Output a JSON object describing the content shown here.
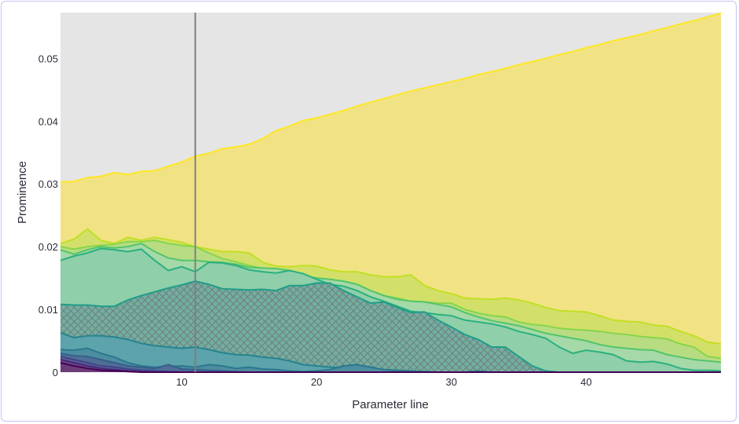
{
  "chart_data": {
    "type": "area",
    "xlabel": "Parameter line",
    "ylabel": "Prominence",
    "xlim": [
      1,
      50
    ],
    "ylim": [
      0,
      0.0573
    ],
    "x_ticks": [
      10,
      20,
      30,
      40
    ],
    "y_ticks": [
      {
        "value": 0,
        "label": "0"
      },
      {
        "value": 0.01,
        "label": "0.01"
      },
      {
        "value": 0.02,
        "label": "0.02"
      },
      {
        "value": 0.03,
        "label": "0.03"
      },
      {
        "value": 0.04,
        "label": "0.04"
      },
      {
        "value": 0.05,
        "label": "0.05"
      }
    ],
    "grid": false,
    "legend": "none",
    "plot_background": "#e5e5e5",
    "vertical_marker": {
      "x": 11,
      "color": "#7f7f7f"
    },
    "x": [
      1,
      2,
      3,
      4,
      5,
      6,
      7,
      8,
      9,
      10,
      11,
      12,
      13,
      14,
      15,
      16,
      17,
      18,
      19,
      20,
      21,
      22,
      23,
      24,
      25,
      26,
      27,
      28,
      29,
      30,
      31,
      32,
      33,
      34,
      35,
      36,
      37,
      38,
      39,
      40,
      41,
      42,
      43,
      44,
      45,
      46,
      47,
      48,
      49,
      50
    ],
    "series": [
      {
        "color": "#fde725",
        "fill": "#f1e384",
        "values": [
          0.0303,
          0.0304,
          0.031,
          0.0312,
          0.0318,
          0.0315,
          0.032,
          0.0321,
          0.0328,
          0.0335,
          0.0344,
          0.0349,
          0.0356,
          0.0359,
          0.0363,
          0.0372,
          0.0385,
          0.0392,
          0.0401,
          0.0405,
          0.0411,
          0.0417,
          0.0424,
          0.043,
          0.0436,
          0.0442,
          0.0448,
          0.0453,
          0.0458,
          0.0463,
          0.0468,
          0.0474,
          0.0479,
          0.0484,
          0.049,
          0.0495,
          0.05,
          0.0506,
          0.0511,
          0.0517,
          0.0522,
          0.0528,
          0.0533,
          0.0538,
          0.0544,
          0.0549,
          0.0555,
          0.056,
          0.0566,
          0.0572
        ]
      },
      {
        "color": "#c2df23",
        "fill": "#d2e06a",
        "values": [
          0.0205,
          0.0212,
          0.0228,
          0.021,
          0.0205,
          0.0215,
          0.021,
          0.0215,
          0.0211,
          0.0207,
          0.02,
          0.0196,
          0.0192,
          0.0192,
          0.019,
          0.0175,
          0.0169,
          0.0168,
          0.017,
          0.0169,
          0.0163,
          0.016,
          0.016,
          0.0155,
          0.0152,
          0.0152,
          0.0155,
          0.0138,
          0.013,
          0.0125,
          0.0118,
          0.0117,
          0.0116,
          0.0118,
          0.0115,
          0.011,
          0.0103,
          0.0098,
          0.0097,
          0.0096,
          0.009,
          0.0083,
          0.0081,
          0.008,
          0.0075,
          0.0073,
          0.0065,
          0.0058,
          0.0048,
          0.0045
        ]
      },
      {
        "color": "#86d549",
        "fill": "#b8dc82",
        "values": [
          0.02,
          0.0196,
          0.02,
          0.0202,
          0.0204,
          0.0208,
          0.0208,
          0.021,
          0.0205,
          0.0202,
          0.02,
          0.019,
          0.0181,
          0.0176,
          0.017,
          0.0165,
          0.0162,
          0.016,
          0.0152,
          0.0148,
          0.0144,
          0.014,
          0.0136,
          0.013,
          0.0122,
          0.0118,
          0.0113,
          0.0112,
          0.011,
          0.011,
          0.01,
          0.0094,
          0.009,
          0.0088,
          0.008,
          0.0076,
          0.0074,
          0.007,
          0.0068,
          0.0067,
          0.0065,
          0.0062,
          0.006,
          0.0057,
          0.0055,
          0.0053,
          0.0045,
          0.004,
          0.0025,
          0.0022
        ]
      },
      {
        "color": "#52c569",
        "fill": "#a5d9a8",
        "values": [
          0.0195,
          0.0188,
          0.0195,
          0.02,
          0.0198,
          0.02,
          0.0205,
          0.0192,
          0.0182,
          0.0178,
          0.0178,
          0.0176,
          0.0175,
          0.0172,
          0.0167,
          0.0166,
          0.0165,
          0.0162,
          0.0154,
          0.015,
          0.0148,
          0.0145,
          0.014,
          0.013,
          0.0122,
          0.0116,
          0.0113,
          0.0112,
          0.0108,
          0.0104,
          0.0095,
          0.0088,
          0.0082,
          0.0078,
          0.0074,
          0.0068,
          0.0062,
          0.0058,
          0.0054,
          0.005,
          0.0044,
          0.004,
          0.0038,
          0.0036,
          0.0035,
          0.0028,
          0.0024,
          0.002,
          0.0018,
          0.0016
        ]
      },
      {
        "color": "#2ab07f",
        "fill": "#8fcfa9",
        "values": [
          0.0178,
          0.0185,
          0.019,
          0.0197,
          0.0195,
          0.0192,
          0.0196,
          0.0178,
          0.0162,
          0.0168,
          0.016,
          0.0175,
          0.0174,
          0.017,
          0.0163,
          0.016,
          0.0158,
          0.0162,
          0.0157,
          0.0148,
          0.014,
          0.0137,
          0.013,
          0.012,
          0.0113,
          0.0105,
          0.0097,
          0.0095,
          0.0092,
          0.009,
          0.0083,
          0.008,
          0.0077,
          0.0072,
          0.0065,
          0.006,
          0.0054,
          0.004,
          0.003,
          0.0035,
          0.0032,
          0.0028,
          0.0018,
          0.0016,
          0.0017,
          0.0013,
          0.0006,
          0.0003,
          0.0003,
          0.0002
        ]
      },
      {
        "color": "#1f9e89",
        "fill": "#72aea2",
        "hatch": true,
        "values": [
          0.0108,
          0.0107,
          0.0107,
          0.0105,
          0.0105,
          0.0115,
          0.0122,
          0.0128,
          0.0134,
          0.0139,
          0.0145,
          0.014,
          0.0133,
          0.0132,
          0.0131,
          0.0132,
          0.013,
          0.0138,
          0.0138,
          0.0142,
          0.0142,
          0.013,
          0.012,
          0.011,
          0.0112,
          0.0103,
          0.0095,
          0.0096,
          0.0083,
          0.0072,
          0.006,
          0.0052,
          0.004,
          0.004,
          0.0025,
          0.001,
          0.0002,
          0.0,
          0.0,
          0.0,
          0.0,
          0.0,
          0.0,
          0.0,
          0.0,
          0.0,
          0.0,
          0.0,
          0.0,
          0.0
        ]
      },
      {
        "color": "#25848e",
        "fill": "#5da3ab",
        "values": [
          0.0063,
          0.0055,
          0.0058,
          0.0058,
          0.0056,
          0.0052,
          0.0046,
          0.0042,
          0.004,
          0.0038,
          0.004,
          0.0036,
          0.0031,
          0.0028,
          0.0027,
          0.0024,
          0.0022,
          0.0018,
          0.0012,
          0.001,
          0.0008,
          0.0007,
          0.0006,
          0.0005,
          0.0004,
          0.0003,
          0.0002,
          0.0001,
          0.0,
          0.0,
          0.0,
          0.0,
          0.0,
          0.0,
          0.0,
          0.0,
          0.0,
          0.0,
          0.0,
          0.0,
          0.0,
          0.0,
          0.0,
          0.0,
          0.0,
          0.0,
          0.0,
          0.0,
          0.0,
          0.0
        ]
      },
      {
        "color": "#2a788e",
        "fill": "#4d8da0",
        "values": [
          0.0036,
          0.0035,
          0.0038,
          0.003,
          0.0024,
          0.0015,
          0.001,
          0.0008,
          0.0009,
          0.001,
          0.0008,
          0.0012,
          0.001,
          0.0006,
          0.0008,
          0.0005,
          0.0004,
          0.0002,
          0.0001,
          0.0002,
          0.0004,
          0.001,
          0.0012,
          0.0008,
          0.0004,
          0.0002,
          0.0001,
          0.0,
          0.0,
          0.0,
          0.0,
          0.0002,
          0.0,
          0.0,
          0.0,
          0.0,
          0.0,
          0.0,
          0.0,
          0.0,
          0.0,
          0.0,
          0.0,
          0.0,
          0.0,
          0.0,
          0.0,
          0.0,
          0.0,
          0.0
        ]
      },
      {
        "color": "#355f8d",
        "fill": "#4f6e96",
        "values": [
          0.003,
          0.0026,
          0.0025,
          0.002,
          0.0015,
          0.001,
          0.0008,
          0.0006,
          0.0012,
          0.0005,
          0.0004,
          0.0003,
          0.0002,
          0.0001,
          0.0,
          0.0,
          0.0,
          0.0,
          0.0,
          0.0,
          0.0,
          0.0,
          0.0,
          0.0,
          0.0,
          0.0,
          0.0,
          0.0,
          0.0,
          0.0,
          0.0,
          0.0,
          0.0,
          0.0,
          0.0,
          0.0,
          0.0,
          0.0,
          0.0,
          0.0,
          0.0,
          0.0,
          0.0,
          0.0,
          0.0,
          0.0,
          0.0,
          0.0,
          0.0,
          0.0
        ]
      },
      {
        "color": "#414487",
        "fill": "#5a5d96",
        "values": [
          0.0025,
          0.002,
          0.0015,
          0.001,
          0.0008,
          0.0005,
          0.0003,
          0.0002,
          0.0001,
          0.0,
          0.0,
          0.0,
          0.0,
          0.0,
          0.0,
          0.0,
          0.0,
          0.0,
          0.0,
          0.0,
          0.0,
          0.0,
          0.0,
          0.0,
          0.0,
          0.0,
          0.0,
          0.0,
          0.0,
          0.0,
          0.0,
          0.0,
          0.0,
          0.0,
          0.0,
          0.0,
          0.0,
          0.0,
          0.0,
          0.0,
          0.0,
          0.0,
          0.0,
          0.0,
          0.0,
          0.0,
          0.0,
          0.0,
          0.0,
          0.0
        ]
      },
      {
        "color": "#482878",
        "fill": "#6b4a8a",
        "values": [
          0.002,
          0.0015,
          0.001,
          0.0006,
          0.0004,
          0.0002,
          0.0001,
          0.0,
          0.0,
          0.0,
          0.0,
          0.0,
          0.0,
          0.0,
          0.0,
          0.0,
          0.0,
          0.0,
          0.0,
          0.0,
          0.0,
          0.0,
          0.0,
          0.0,
          0.0,
          0.0,
          0.0,
          0.0,
          0.0,
          0.0,
          0.0,
          0.0,
          0.0,
          0.0,
          0.0,
          0.0,
          0.0,
          0.0,
          0.0,
          0.0,
          0.0,
          0.0,
          0.0,
          0.0,
          0.0,
          0.0,
          0.0,
          0.0,
          0.0,
          0.0
        ]
      },
      {
        "color": "#440154",
        "fill": "#6d3d7a",
        "values": [
          0.0015,
          0.001,
          0.0006,
          0.0003,
          0.0002,
          0.0001,
          0.0,
          0.0,
          0.0,
          0.0,
          0.0,
          0.0,
          0.0,
          0.0,
          0.0,
          0.0,
          0.0,
          0.0,
          0.0,
          0.0,
          0.0,
          0.0,
          0.0,
          0.0,
          0.0,
          0.0,
          0.0,
          0.0,
          0.0,
          0.0,
          0.0,
          0.0,
          0.0,
          0.0,
          0.0,
          0.0,
          0.0,
          0.0,
          0.0,
          0.0,
          0.0,
          0.0,
          0.0,
          0.0,
          0.0,
          0.0,
          0.0,
          0.0,
          0.0,
          0.0
        ]
      }
    ]
  }
}
